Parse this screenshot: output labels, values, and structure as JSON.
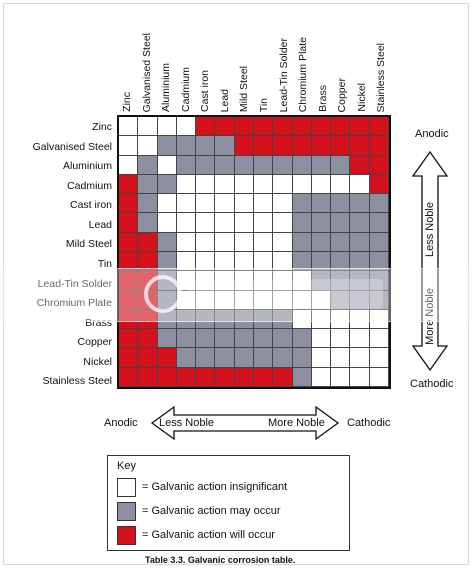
{
  "table": {
    "columns": [
      "Zinc",
      "Galvanised Steel",
      "Aluminium",
      "Cadmium",
      "Cast iron",
      "Lead",
      "Mild Steel",
      "Tin",
      "Lead-Tin Solder",
      "Chromium Plate",
      "Brass",
      "Copper",
      "Nickel",
      "Stainless Steel"
    ],
    "rows": [
      "Zinc",
      "Galvanised Steel",
      "Aluminium",
      "Cadmium",
      "Cast iron",
      "Lead",
      "Mild Steel",
      "Tin",
      "Lead-Tin Solder",
      "Chromium Plate",
      "Brass",
      "Copper",
      "Nickel",
      "Stainless Steel"
    ],
    "cell_key": "W = insignificant, G = may occur, R = will occur",
    "cells": [
      "WWWWRRRRRRRRRR",
      "WWGGGGRRRRRRRR",
      "WGWGGGGGGGGGRR",
      "RGGWWWWWWWWWWR",
      "RGWWWWWWWGGGGG",
      "RGWWWWWWWGGGGG",
      "RRGWWWWWWGGGGG",
      "RRGWWWWWWGGGGG",
      "RRGWWWWWWWGGGG",
      "RRGWWWWWWWWGGG",
      "RRGGGGGGGWWWWW",
      "RRGGGGGGGGWWWW",
      "RRRGGGGGGGWWWW",
      "RRRRRRRRRGWWWW"
    ],
    "colors": {
      "W": "#ffffff",
      "G": "#8c8f9f",
      "R": "#d4101c"
    }
  },
  "vertical_scale": {
    "top": "Anodic",
    "bottom": "Cathodic",
    "upper": "Less Noble",
    "lower": "More Noble"
  },
  "horizontal_scale": {
    "left": "Anodic",
    "right": "Cathodic",
    "left_arrow": "Less Noble",
    "right_arrow": "More Noble"
  },
  "key": {
    "title": "Key",
    "items": [
      {
        "color": "#ffffff",
        "label": "= Galvanic action insignificant"
      },
      {
        "color": "#8c8f9f",
        "label": "= Galvanic action may occur"
      },
      {
        "color": "#d4101c",
        "label": "= Galvanic action will occur"
      }
    ]
  },
  "caption": "Table 3.3. Galvanic corrosion table."
}
